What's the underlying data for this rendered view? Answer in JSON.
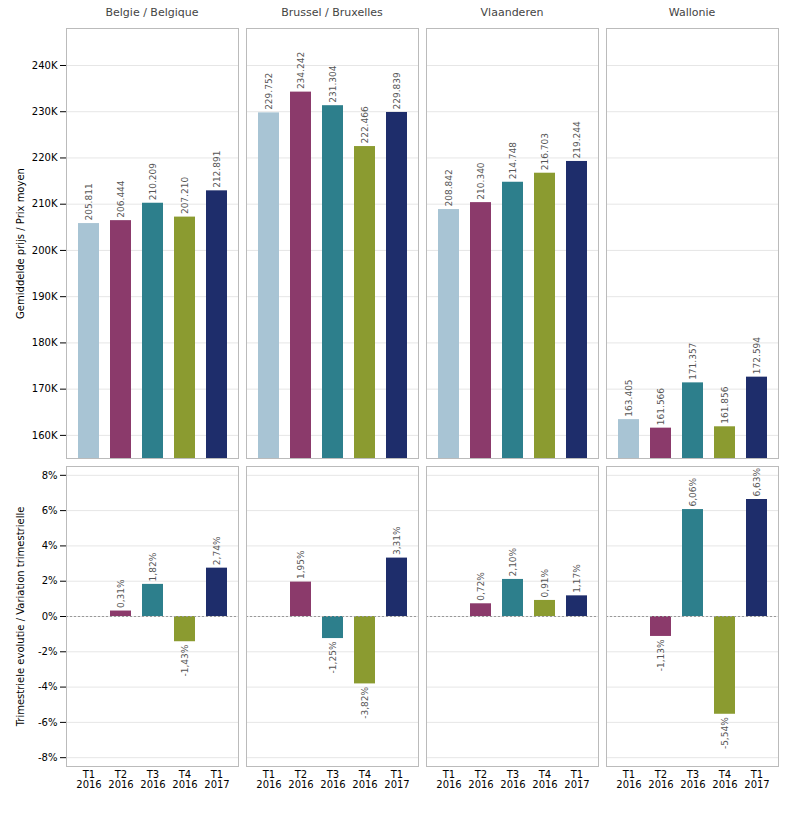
{
  "chart_data": [
    {
      "type": "bar",
      "title": "Belgie / Belgique",
      "categories": [
        "T1\n2016",
        "T2\n2016",
        "T3\n2016",
        "T4\n2016",
        "T1\n2017"
      ],
      "values": [
        205811,
        206444,
        210209,
        207210,
        212891
      ],
      "value_labels": [
        "205.811",
        "206.444",
        "210.209",
        "207.210",
        "212.891"
      ],
      "colors": [
        "#a8c4d4",
        "#8b3a6b",
        "#2d7f8c",
        "#8b9b30",
        "#1e2d6b"
      ],
      "ylabel": "Gemiddelde prijs / Prix moyen",
      "ylim": [
        155000,
        248000
      ],
      "yticks": [
        {
          "value": 160000,
          "label": "160K"
        },
        {
          "value": 170000,
          "label": "170K"
        },
        {
          "value": 180000,
          "label": "180K"
        },
        {
          "value": 190000,
          "label": "190K"
        },
        {
          "value": 200000,
          "label": "200K"
        },
        {
          "value": 210000,
          "label": "210K"
        },
        {
          "value": 220000,
          "label": "220K"
        },
        {
          "value": 230000,
          "label": "230K"
        },
        {
          "value": 240000,
          "label": "240K"
        }
      ],
      "grid": true,
      "data_labels": true,
      "tick_labels": "y"
    },
    {
      "type": "bar",
      "categories": [
        "T1\n2016",
        "T2\n2016",
        "T3\n2016",
        "T4\n2016",
        "T1\n2017"
      ],
      "values": [
        null,
        0.0031,
        0.0182,
        -0.0143,
        0.0274
      ],
      "value_labels": [
        null,
        "0,31%",
        "1,82%",
        "-1,43%",
        "2,74%"
      ],
      "colors": [
        "#a8c4d4",
        "#8b3a6b",
        "#2d7f8c",
        "#8b9b30",
        "#1e2d6b"
      ],
      "ylabel": "Trimestriele evolutie / Variation trimestrielle",
      "ylim": [
        -0.085,
        0.085
      ],
      "yticks": [
        {
          "value": -0.08,
          "label": "-8%"
        },
        {
          "value": -0.06,
          "label": "-6%"
        },
        {
          "value": -0.04,
          "label": "-4%"
        },
        {
          "value": -0.02,
          "label": "-2%"
        },
        {
          "value": 0.0,
          "label": "0%"
        },
        {
          "value": 0.02,
          "label": "2%"
        },
        {
          "value": 0.04,
          "label": "4%"
        },
        {
          "value": 0.06,
          "label": "6%"
        },
        {
          "value": 0.08,
          "label": "8%"
        }
      ],
      "grid": true,
      "data_labels": true
    },
    {
      "type": "bar",
      "title": "Brussel / Bruxelles",
      "categories": [
        "T1\n2016",
        "T2\n2016",
        "T3\n2016",
        "T4\n2016",
        "T1\n2017"
      ],
      "values": [
        229752,
        234242,
        231304,
        222466,
        229839
      ],
      "value_labels": [
        "229.752",
        "234.242",
        "231.304",
        "222.466",
        "229.839"
      ],
      "colors": [
        "#a8c4d4",
        "#8b3a6b",
        "#2d7f8c",
        "#8b9b30",
        "#1e2d6b"
      ],
      "ylim": [
        155000,
        248000
      ],
      "yticks": [
        160000,
        170000,
        180000,
        190000,
        200000,
        210000,
        220000,
        230000,
        240000
      ],
      "grid": true,
      "data_labels": true,
      "tick_labels": false
    },
    {
      "type": "bar",
      "categories": [
        "T1\n2016",
        "T2\n2016",
        "T3\n2016",
        "T4\n2016",
        "T1\n2017"
      ],
      "values": [
        null,
        0.0195,
        -0.0125,
        -0.0382,
        0.0331
      ],
      "value_labels": [
        null,
        "1,95%",
        "-1,25%",
        "-3,82%",
        "3,31%"
      ],
      "colors": [
        "#a8c4d4",
        "#8b3a6b",
        "#2d7f8c",
        "#8b9b30",
        "#1e2d6b"
      ],
      "ylim": [
        -0.085,
        0.085
      ],
      "yticks": [
        -0.08,
        -0.06,
        -0.04,
        -0.02,
        0.0,
        0.02,
        0.04,
        0.06,
        0.08
      ],
      "grid": true,
      "data_labels": true,
      "tick_labels": "x"
    },
    {
      "type": "bar",
      "title": "Vlaanderen",
      "categories": [
        "T1\n2016",
        "T2\n2016",
        "T3\n2016",
        "T4\n2016",
        "T1\n2017"
      ],
      "values": [
        208842,
        210340,
        214748,
        216703,
        219244
      ],
      "value_labels": [
        "208.842",
        "210.340",
        "214.748",
        "216.703",
        "219.244"
      ],
      "colors": [
        "#a8c4d4",
        "#8b3a6b",
        "#2d7f8c",
        "#8b9b30",
        "#1e2d6b"
      ],
      "ylim": [
        155000,
        248000
      ],
      "yticks": [
        160000,
        170000,
        180000,
        190000,
        200000,
        210000,
        220000,
        230000,
        240000
      ],
      "grid": true,
      "data_labels": true,
      "tick_labels": false
    },
    {
      "type": "bar",
      "categories": [
        "T1\n2016",
        "T2\n2016",
        "T3\n2016",
        "T4\n2016",
        "T1\n2017"
      ],
      "values": [
        null,
        0.0072,
        0.021,
        0.0091,
        0.0117
      ],
      "value_labels": [
        null,
        "0,72%",
        "2,10%",
        "0,91%",
        "1,17%"
      ],
      "colors": [
        "#a8c4d4",
        "#8b3a6b",
        "#2d7f8c",
        "#8b9b30",
        "#1e2d6b"
      ],
      "ylim": [
        -0.085,
        0.085
      ],
      "yticks": [
        -0.08,
        -0.06,
        -0.04,
        -0.02,
        0.0,
        0.02,
        0.04,
        0.06,
        0.08
      ],
      "grid": true,
      "data_labels": true,
      "tick_labels": "x"
    },
    {
      "type": "bar",
      "title": "Wallonie",
      "categories": [
        "T1\n2016",
        "T2\n2016",
        "T3\n2016",
        "T4\n2016",
        "T1\n2017"
      ],
      "values": [
        163405,
        161566,
        171357,
        161856,
        172594
      ],
      "value_labels": [
        "163.405",
        "161.566",
        "171.357",
        "161.856",
        "172.594"
      ],
      "colors": [
        "#a8c4d4",
        "#8b3a6b",
        "#2d7f8c",
        "#8b9b30",
        "#1e2d6b"
      ],
      "ylim": [
        155000,
        248000
      ],
      "yticks": [
        160000,
        170000,
        180000,
        190000,
        200000,
        210000,
        220000,
        230000,
        240000
      ],
      "grid": true,
      "data_labels": true,
      "tick_labels": false
    },
    {
      "type": "bar",
      "categories": [
        "T1\n2016",
        "T2\n2016",
        "T3\n2016",
        "T4\n2016",
        "T1\n2017"
      ],
      "values": [
        null,
        -0.0113,
        0.0606,
        -0.0554,
        0.0663
      ],
      "value_labels": [
        null,
        "-1,13%",
        "6,06%",
        "-5,54%",
        "6,63%"
      ],
      "colors": [
        "#a8c4d4",
        "#8b3a6b",
        "#2d7f8c",
        "#8b9b30",
        "#1e2d6b"
      ],
      "ylim": [
        -0.085,
        0.085
      ],
      "yticks": [
        -0.08,
        -0.06,
        -0.04,
        -0.02,
        0.0,
        0.02,
        0.04,
        0.06,
        0.08
      ],
      "grid": true,
      "data_labels": true,
      "tick_labels": "x"
    }
  ]
}
